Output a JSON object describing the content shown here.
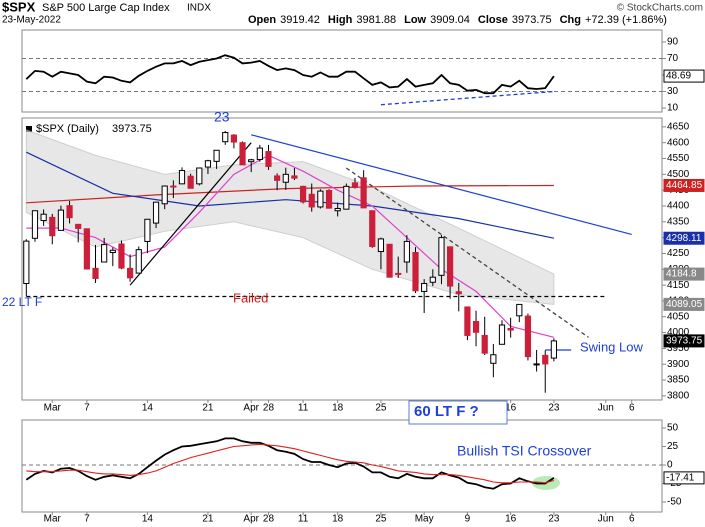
{
  "header": {
    "symbol": "$SPX",
    "name": "S&P 500 Large Cap Index",
    "exchange": "INDX",
    "date": "23-May-2022",
    "credit": "© StockCharts.com",
    "fields": [
      {
        "label": "Open",
        "value": 3919.42
      },
      {
        "label": "High",
        "value": 3981.88
      },
      {
        "label": "Low",
        "value": 3909.04
      },
      {
        "label": "Close",
        "value": 3973.75
      },
      {
        "label": "Chg",
        "value": {
          "value": 72.39,
          "label": "+72.39 (+1.86%)"
        }
      }
    ]
  },
  "chart_data": [
    {
      "type": "line",
      "xlim": [
        -0.5,
        73.5
      ],
      "ylim": [
        5.2,
        104.5
      ],
      "yticks": [
        90,
        70,
        50,
        30,
        10
      ],
      "ref_lines": [
        70,
        30
      ],
      "series": [
        {
          "color": "#000000",
          "values": [
            45,
            55,
            54,
            48,
            54,
            52,
            50,
            42,
            40,
            48,
            47,
            43,
            41,
            49,
            55,
            60,
            64,
            64,
            67,
            62,
            66,
            68,
            70,
            74,
            71,
            64,
            65,
            67,
            61,
            56,
            58,
            56,
            50,
            48,
            53,
            48,
            48,
            54,
            54,
            46,
            38,
            41,
            35,
            36,
            45,
            36,
            38,
            40,
            50,
            40,
            38,
            31,
            32,
            28,
            28,
            38,
            36,
            43,
            34,
            33,
            34,
            48.69
          ]
        }
      ],
      "last_values": [
        {
          "value": 48.69,
          "color": "#ffffff"
        }
      ],
      "lines": [
        {
          "x": [
            41,
            61
          ],
          "y": [
            14,
            30
          ],
          "color": "#1f3fd6",
          "dash": true
        }
      ]
    },
    {
      "type": "candlestick",
      "label": "$SPX (Daily)",
      "label_value": 3973.75,
      "xlim": [
        -0.5,
        73.5
      ],
      "ylim": [
        3787,
        4678
      ],
      "yticks": [
        4650,
        4600,
        4550,
        4500,
        4450,
        4400,
        4350,
        4300,
        4250,
        4200,
        4150,
        4100,
        4050,
        4000,
        3950,
        3900,
        3850,
        3800
      ],
      "xticks": [
        {
          "value": 3,
          "label": "Mar"
        },
        7,
        14,
        21,
        28,
        {
          "value": 26,
          "label": "Apr"
        },
        {
          "value": 32,
          "label": "11"
        },
        {
          "value": 36,
          "label": "18"
        },
        {
          "value": 41,
          "label": "25"
        },
        {
          "value": 46,
          "label": "May"
        },
        {
          "value": 51,
          "label": "9"
        },
        {
          "value": 56,
          "label": "16"
        },
        {
          "value": 61,
          "label": "23"
        },
        {
          "value": 67,
          "label": "Jun"
        },
        {
          "value": 70,
          "label": "6"
        }
      ],
      "up_color": "#ffffff",
      "down_color": "#cc1f3a",
      "wick_color": "#000000",
      "open": [
        4155,
        4298,
        4354,
        4364,
        4323,
        4401,
        4342,
        4328,
        4203,
        4223,
        4253,
        4280,
        4203,
        4188,
        4288,
        4346,
        4407,
        4463,
        4470,
        4494,
        4470,
        4523,
        4541,
        4603,
        4624,
        4600,
        4540,
        4547,
        4572,
        4495,
        4475,
        4495,
        4462,
        4437,
        4397,
        4449,
        4385,
        4390,
        4473,
        4489,
        4385,
        4256,
        4279,
        4187,
        4223,
        4253,
        4130,
        4159,
        4181,
        4271,
        4129,
        4081,
        4035,
        3991,
        3903,
        3963,
        4013,
        4053,
        4052,
        3899,
        3928,
        3919.42
      ],
      "high": [
        4295,
        4385,
        4389,
        4375,
        4401,
        4416,
        4343,
        4329,
        4277,
        4299,
        4269,
        4291,
        4247,
        4272,
        4358,
        4412,
        4465,
        4481,
        4522,
        4502,
        4521,
        4546,
        4576,
        4637,
        4627,
        4604,
        4549,
        4593,
        4593,
        4503,
        4521,
        4520,
        4464,
        4471,
        4453,
        4453,
        4411,
        4471,
        4489,
        4513,
        4386,
        4300,
        4280,
        4240,
        4308,
        4270,
        4169,
        4200,
        4308,
        4271,
        4157,
        4082,
        4069,
        4050,
        3964,
        4039,
        4047,
        4090,
        4060,
        3945,
        3944,
        3981.88
      ],
      "low": [
        4115,
        4287,
        4337,
        4279,
        4323,
        4345,
        4285,
        4199,
        4157,
        4223,
        4210,
        4200,
        4161,
        4188,
        4251,
        4330,
        4390,
        4425,
        4469,
        4455,
        4465,
        4501,
        4517,
        4593,
        4582,
        4530,
        4507,
        4540,
        4514,
        4450,
        4451,
        4482,
        4408,
        4382,
        4392,
        4392,
        4367,
        4390,
        4455,
        4394,
        4268,
        4200,
        4175,
        4173,
        4189,
        4125,
        4062,
        4147,
        4153,
        4107,
        4067,
        3976,
        3957,
        3929,
        3859,
        3963,
        3984,
        4033,
        3912,
        3877,
        3810,
        3909.04
      ],
      "close": [
        4289,
        4385,
        4374,
        4306,
        4387,
        4363,
        4329,
        4201,
        4171,
        4278,
        4260,
        4204,
        4173,
        4262,
        4358,
        4412,
        4463,
        4461,
        4512,
        4456,
        4520,
        4543,
        4576,
        4632,
        4602,
        4530,
        4546,
        4583,
        4525,
        4481,
        4500,
        4488,
        4413,
        4397,
        4447,
        4393,
        4392,
        4462,
        4459,
        4394,
        4272,
        4296,
        4175,
        4184,
        4288,
        4132,
        4155,
        4175,
        4300,
        4147,
        4123,
        3991,
        4001,
        3935,
        3930,
        4024,
        4008,
        4089,
        3924,
        3901,
        3901,
        3973.75
      ],
      "band": {
        "color": "#dddddd",
        "x": [
          0,
          8,
          16,
          24,
          32,
          40,
          50,
          61
        ],
        "upper": [
          4640,
          4560,
          4500,
          4530,
          4540,
          4460,
          4330,
          4184.8
        ],
        "lower": [
          4380,
          4270,
          4320,
          4350,
          4300,
          4200,
          4120,
          4089.05
        ]
      },
      "overlays": [
        {
          "color": "#cc2222",
          "x": [
            0,
            15,
            30,
            45,
            61
          ],
          "values": [
            4410,
            4435,
            4455,
            4463,
            4464.85
          ]
        },
        {
          "color": "#1a2fa8",
          "x": [
            0,
            10,
            20,
            30,
            40,
            50,
            61
          ],
          "values": [
            4570,
            4440,
            4400,
            4420,
            4400,
            4360,
            4298.11
          ]
        },
        {
          "color": "#e040d0",
          "x": [
            0,
            4,
            8,
            12,
            16,
            20,
            24,
            28,
            32,
            36,
            40,
            44,
            48,
            52,
            56,
            61
          ],
          "values": [
            4330,
            4330,
            4300,
            4240,
            4270,
            4380,
            4500,
            4560,
            4510,
            4450,
            4400,
            4300,
            4200,
            4130,
            4020,
            3985
          ]
        }
      ],
      "last_values": [
        {
          "value": 4464.85,
          "color": "#cc2222"
        },
        {
          "value": 4298.11,
          "color": "#1a2fa8"
        },
        {
          "value": 4184.8,
          "color": "#888888"
        },
        {
          "value": 4089.05,
          "color": "#888888"
        },
        {
          "value": 3973.75,
          "color": "#000000"
        }
      ],
      "lines": [
        {
          "x": [
            12,
            26
          ],
          "y": [
            4150,
            4600
          ],
          "color": "#000000",
          "dash": false
        },
        {
          "x": [
            26,
            70
          ],
          "y": [
            4625,
            4310
          ],
          "color": "#1f3fd6",
          "dash": false
        },
        {
          "x": [
            37,
            65
          ],
          "y": [
            4520,
            3985
          ],
          "color": "#444444",
          "dash": true
        },
        {
          "x": [
            0,
            67
          ],
          "y": [
            4114,
            4114
          ],
          "color": "#000000",
          "dash": true
        },
        {
          "x": [
            60,
            63
          ],
          "y": [
            3945,
            3945
          ],
          "color": "#1f3fd6",
          "dash": false
        }
      ],
      "annotations": [
        {
          "text": "22 LT F",
          "color": "#1f3fd6"
        },
        {
          "text": "23",
          "color": "#1f3fd6"
        },
        {
          "text": "Failed",
          "color": "#d01818"
        },
        {
          "text": "Swing Low",
          "color": "#1f3fd6"
        },
        {
          "text": "60 LT F  ?",
          "color": "#1f3fd6"
        }
      ]
    },
    {
      "type": "line",
      "xlim": [
        -0.5,
        73.5
      ],
      "ylim": [
        -63.5,
        60.8
      ],
      "yticks": [
        50,
        25,
        0,
        -25,
        -50
      ],
      "ref_lines": [
        0
      ],
      "xticks": [
        {
          "value": 3,
          "label": "Mar"
        },
        7,
        14,
        21,
        28,
        {
          "value": 26,
          "label": "Apr"
        },
        {
          "value": 32,
          "label": "11"
        },
        {
          "value": 36,
          "label": "18"
        },
        {
          "value": 41,
          "label": "25"
        },
        {
          "value": 46,
          "label": "May"
        },
        {
          "value": 51,
          "label": "9"
        },
        {
          "value": 56,
          "label": "16"
        },
        {
          "value": 61,
          "label": "23"
        },
        {
          "value": 67,
          "label": "Jun"
        },
        {
          "value": 70,
          "label": "6"
        }
      ],
      "series": [
        {
          "color": "#000000",
          "values": [
            -20,
            -12,
            -8,
            -10,
            -5,
            -4,
            -8,
            -15,
            -20,
            -16,
            -14,
            -16,
            -18,
            -12,
            -3,
            6,
            14,
            20,
            25,
            26,
            28,
            30,
            32,
            36,
            36,
            32,
            30,
            30,
            26,
            20,
            18,
            15,
            8,
            4,
            4,
            0,
            -3,
            2,
            3,
            -2,
            -10,
            -10,
            -16,
            -18,
            -12,
            -16,
            -18,
            -18,
            -10,
            -14,
            -17,
            -24,
            -26,
            -30,
            -32,
            -26,
            -25,
            -18,
            -22,
            -25,
            -25,
            -17.41
          ]
        },
        {
          "color": "#e02020",
          "values": [
            -8,
            -9,
            -9,
            -9,
            -8,
            -7,
            -7,
            -9,
            -11,
            -12,
            -12,
            -13,
            -14,
            -13,
            -11,
            -8,
            -3,
            2,
            6,
            10,
            13,
            16,
            19,
            22,
            25,
            26,
            27,
            28,
            27,
            26,
            24,
            22,
            19,
            16,
            13,
            10,
            7,
            5,
            4,
            3,
            0,
            -2,
            -5,
            -8,
            -9,
            -10,
            -12,
            -13,
            -13,
            -13,
            -14,
            -16,
            -18,
            -20,
            -23,
            -24,
            -24,
            -23,
            -23,
            -23,
            -24,
            -21
          ]
        }
      ],
      "last_values": [
        {
          "value": -17.41,
          "color": "#ffffff"
        }
      ],
      "annotations": [
        {
          "text": "Bullish TSI Crossover",
          "color": "#1f3fd6"
        }
      ]
    }
  ]
}
